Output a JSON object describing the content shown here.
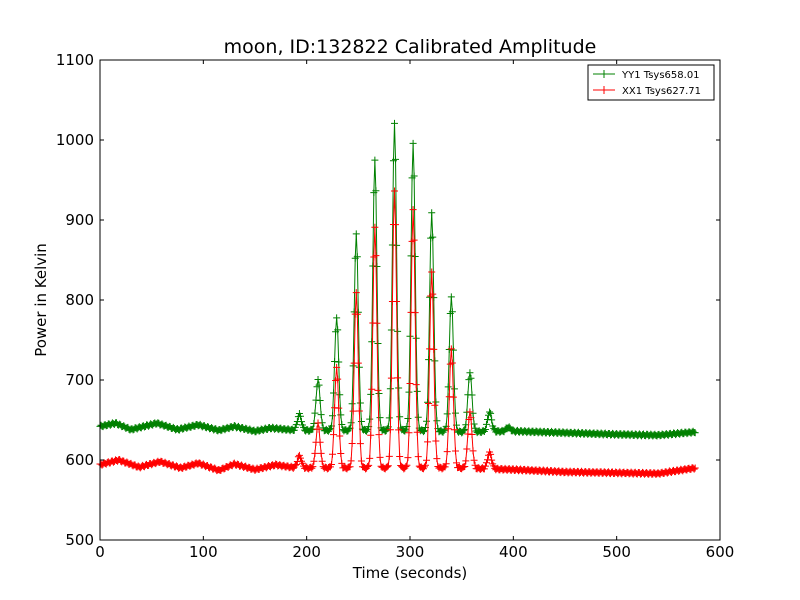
{
  "chart_data": {
    "type": "line",
    "title": "moon, ID:132822 Calibrated Amplitude",
    "xlabel": "Time (seconds)",
    "ylabel": "Power in Kelvin",
    "xlim": [
      0,
      600
    ],
    "ylim": [
      500,
      1100
    ],
    "xticks": [
      0,
      100,
      200,
      300,
      400,
      500,
      600
    ],
    "yticks": [
      500,
      600,
      700,
      800,
      900,
      1000,
      1100
    ],
    "grid": false,
    "legend_position": "top-right",
    "marker": "+",
    "sample_interval_seconds": 1,
    "x_range": [
      0,
      576
    ],
    "series": [
      {
        "name": "YY1 Tsys658.01",
        "color": "#008000",
        "baseline": [
          [
            0,
            642
          ],
          [
            15,
            646
          ],
          [
            30,
            638
          ],
          [
            55,
            646
          ],
          [
            75,
            638
          ],
          [
            95,
            644
          ],
          [
            115,
            637
          ],
          [
            130,
            642
          ],
          [
            150,
            636
          ],
          [
            165,
            640
          ],
          [
            190,
            637
          ],
          [
            240,
            637
          ],
          [
            300,
            637
          ],
          [
            350,
            635
          ],
          [
            400,
            636
          ],
          [
            450,
            634
          ],
          [
            500,
            632
          ],
          [
            540,
            631
          ],
          [
            576,
            635
          ]
        ],
        "peaks": [
          [
            193,
            657
          ],
          [
            211,
            700
          ],
          [
            229,
            778
          ],
          [
            248,
            882
          ],
          [
            266,
            975
          ],
          [
            285,
            1020
          ],
          [
            303,
            996
          ],
          [
            321,
            910
          ],
          [
            340,
            804
          ],
          [
            358,
            710
          ],
          [
            377,
            660
          ],
          [
            395,
            641
          ]
        ]
      },
      {
        "name": "XX1 Tsys627.71",
        "color": "#ff0000",
        "baseline": [
          [
            0,
            594
          ],
          [
            18,
            600
          ],
          [
            38,
            591
          ],
          [
            58,
            598
          ],
          [
            78,
            590
          ],
          [
            95,
            596
          ],
          [
            115,
            587
          ],
          [
            130,
            595
          ],
          [
            150,
            588
          ],
          [
            170,
            594
          ],
          [
            190,
            590
          ],
          [
            240,
            590
          ],
          [
            300,
            590
          ],
          [
            350,
            590
          ],
          [
            400,
            588
          ],
          [
            450,
            585
          ],
          [
            500,
            584
          ],
          [
            540,
            583
          ],
          [
            576,
            590
          ]
        ],
        "peaks": [
          [
            193,
            605
          ],
          [
            211,
            645
          ],
          [
            229,
            715
          ],
          [
            248,
            808
          ],
          [
            266,
            890
          ],
          [
            285,
            935
          ],
          [
            303,
            912
          ],
          [
            321,
            835
          ],
          [
            340,
            738
          ],
          [
            358,
            660
          ],
          [
            377,
            609
          ]
        ]
      }
    ]
  }
}
